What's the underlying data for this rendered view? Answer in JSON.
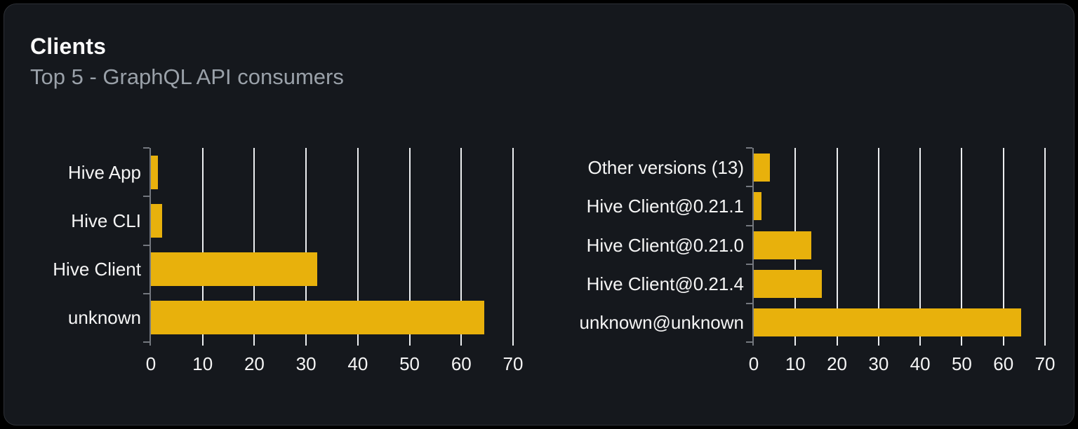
{
  "card": {
    "title": "Clients",
    "subtitle": "Top 5 - GraphQL API consumers"
  },
  "colors": {
    "outer_background": "#000000",
    "card_background": "#15181d",
    "card_border": "#2d3036",
    "bar": "#e8b10c",
    "gridline": "#eceef0",
    "axis": "#74787f",
    "title_text": "#fafafa",
    "subtitle_text": "#9aa1a9",
    "label_text": "#f5f5f5"
  },
  "chart_data": [
    {
      "type": "bar",
      "name": "clients-by-name",
      "orientation": "horizontal",
      "categories": [
        "Hive App",
        "Hive CLI",
        "Hive Client",
        "unknown"
      ],
      "values": [
        1.3,
        2.2,
        32.1,
        64.4
      ],
      "xlim": [
        0,
        70
      ],
      "x_ticks": [
        0,
        10,
        20,
        30,
        40,
        50,
        60,
        70
      ],
      "grid": true,
      "legend": "none",
      "bar_color": "#e8b10c"
    },
    {
      "type": "bar",
      "name": "clients-by-version",
      "orientation": "horizontal",
      "categories": [
        "Other versions (13)",
        "Hive Client@0.21.1",
        "Hive Client@0.21.0",
        "Hive Client@0.21.4",
        "unknown@unknown"
      ],
      "values": [
        3.9,
        1.8,
        13.8,
        16.4,
        64.2
      ],
      "xlim": [
        0,
        70
      ],
      "x_ticks": [
        0,
        10,
        20,
        30,
        40,
        50,
        60,
        70
      ],
      "grid": true,
      "legend": "none",
      "bar_color": "#e8b10c"
    }
  ]
}
